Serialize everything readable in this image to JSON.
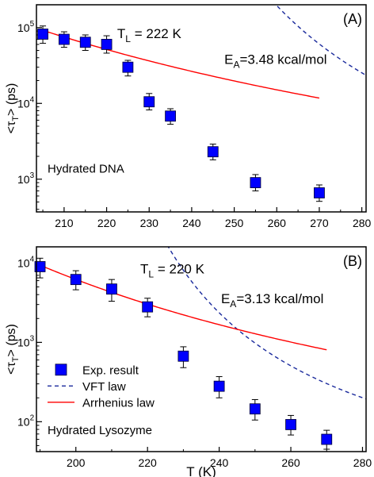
{
  "chart_data": [
    {
      "type": "scatter",
      "panel_label": "(A)",
      "sample_label": "Hydrated DNA",
      "transition_label": {
        "main": "T",
        "sub": "L",
        "value": " = 222 K"
      },
      "energy_label": {
        "main": "E",
        "sub": "A",
        "value": "=3.48 kcal/mol"
      },
      "ylabel": {
        "pre": "<",
        "main": "τ",
        "sub": "T",
        "post": "> (ps)"
      },
      "yscale": "log",
      "xlim": [
        203.5,
        281
      ],
      "ylim": [
        370,
        200000
      ],
      "xticks": [
        210,
        220,
        230,
        240,
        250,
        260,
        270,
        280
      ],
      "yticks": [
        {
          "value": 1000,
          "base": "10",
          "exp": "3"
        },
        {
          "value": 10000,
          "base": "10",
          "exp": "4"
        },
        {
          "value": 100000,
          "base": "10",
          "exp": "5"
        }
      ],
      "points": [
        {
          "x": 205,
          "y": 82000,
          "err_lo": 62000,
          "err_hi": 105000
        },
        {
          "x": 210,
          "y": 70000,
          "err_lo": 55000,
          "err_hi": 88000
        },
        {
          "x": 215,
          "y": 64000,
          "err_lo": 50000,
          "err_hi": 80000
        },
        {
          "x": 220,
          "y": 60000,
          "err_lo": 46000,
          "err_hi": 78000
        },
        {
          "x": 225,
          "y": 30000,
          "err_lo": 23000,
          "err_hi": 37000
        },
        {
          "x": 230,
          "y": 10500,
          "err_lo": 8200,
          "err_hi": 13500
        },
        {
          "x": 235,
          "y": 6800,
          "err_lo": 5300,
          "err_hi": 8500
        },
        {
          "x": 245,
          "y": 2300,
          "err_lo": 1800,
          "err_hi": 2900
        },
        {
          "x": 255,
          "y": 900,
          "err_lo": 700,
          "err_hi": 1150
        },
        {
          "x": 270,
          "y": 660,
          "err_lo": 510,
          "err_hi": 840
        }
      ],
      "vft": {
        "A": 55.4,
        "B": 490,
        "T0": 200,
        "x_start": 216.2,
        "x_end": 281
      },
      "arrhenius": {
        "y_ref": 92000,
        "T_ref": 205,
        "Ea_kcal": 3.48,
        "x_start": 205,
        "x_end": 270
      },
      "colors": {
        "marker": "#0000ff",
        "vft": "#1a2a9c",
        "arrhenius": "#ff0000"
      }
    },
    {
      "type": "scatter",
      "panel_label": "(B)",
      "sample_label": "Hydrated Lysozyme",
      "transition_label": {
        "main": "T",
        "sub": "L",
        "value": " = 220 K"
      },
      "energy_label": {
        "main": "E",
        "sub": "A",
        "value": "=3.13 kcal/mol"
      },
      "ylabel": {
        "pre": "<",
        "main": "τ",
        "sub": "T",
        "post": "> (ps)"
      },
      "xlabel": "T (K)",
      "yscale": "log",
      "xlim": [
        189,
        281
      ],
      "ylim": [
        42,
        16000
      ],
      "xticks": [
        200,
        220,
        240,
        260,
        280
      ],
      "yticks": [
        {
          "value": 100,
          "base": "10",
          "exp": "2"
        },
        {
          "value": 1000,
          "base": "10",
          "exp": "3"
        },
        {
          "value": 10000,
          "base": "10",
          "exp": "4"
        }
      ],
      "points": [
        {
          "x": 190,
          "y": 9000,
          "err_lo": 6500,
          "err_hi": 11500
        },
        {
          "x": 200,
          "y": 6200,
          "err_lo": 4600,
          "err_hi": 8000
        },
        {
          "x": 210,
          "y": 4700,
          "err_lo": 3300,
          "err_hi": 6200
        },
        {
          "x": 220,
          "y": 2800,
          "err_lo": 2100,
          "err_hi": 3600
        },
        {
          "x": 230,
          "y": 670,
          "err_lo": 480,
          "err_hi": 880
        },
        {
          "x": 240,
          "y": 280,
          "err_lo": 200,
          "err_hi": 370
        },
        {
          "x": 250,
          "y": 145,
          "err_lo": 105,
          "err_hi": 190
        },
        {
          "x": 260,
          "y": 92,
          "err_lo": 68,
          "err_hi": 120
        },
        {
          "x": 270,
          "y": 60,
          "err_lo": 45,
          "err_hi": 78
        }
      ],
      "vft": {
        "A": 4.96,
        "B": 370,
        "T0": 180,
        "x_start": 212.5,
        "x_end": 281
      },
      "arrhenius": {
        "y_ref": 9400,
        "T_ref": 190,
        "Ea_kcal": 3.13,
        "x_start": 190,
        "x_end": 270
      },
      "legend": [
        {
          "label": "Exp. result",
          "kind": "marker"
        },
        {
          "label": "VFT law",
          "kind": "vft"
        },
        {
          "label": "Arrhenius law",
          "kind": "arrhenius"
        }
      ],
      "colors": {
        "marker": "#0000ff",
        "vft": "#1a2a9c",
        "arrhenius": "#ff0000"
      }
    }
  ]
}
